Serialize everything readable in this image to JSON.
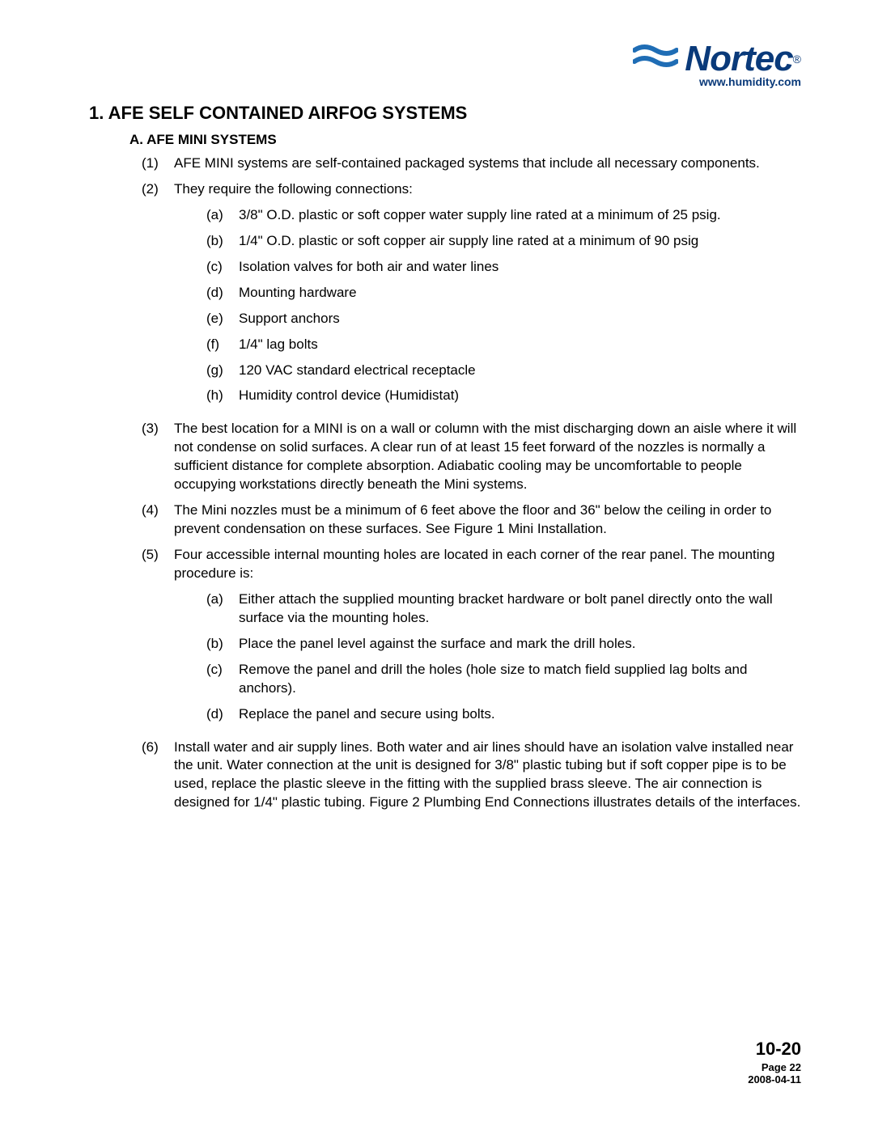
{
  "logo": {
    "name": "Nortec",
    "url": "www.humidity.com",
    "wave_color": "#1f6db5",
    "text_color": "#0a3a7a"
  },
  "title": "1.  AFE SELF CONTAINED AIRFOG SYSTEMS",
  "subtitle": "A.  AFE MINI SYSTEMS",
  "items": [
    {
      "marker": "(1)",
      "text": "AFE MINI systems are self-contained packaged systems that include all necessary components."
    },
    {
      "marker": "(2)",
      "text": "They require the following connections:",
      "subs": [
        {
          "marker": "(a)",
          "text": "3/8\" O.D. plastic or soft copper water supply line rated at a minimum of 25 psig."
        },
        {
          "marker": "(b)",
          "text": "1/4\" O.D. plastic or soft copper air supply line rated at a minimum of 90 psig"
        },
        {
          "marker": "(c)",
          "text": "Isolation valves for both air and water lines"
        },
        {
          "marker": "(d)",
          "text": "Mounting hardware"
        },
        {
          "marker": "(e)",
          "text": "Support anchors"
        },
        {
          "marker": "(f)",
          "text": "1/4\" lag bolts"
        },
        {
          "marker": "(g)",
          "text": "120 VAC standard electrical receptacle"
        },
        {
          "marker": "(h)",
          "text": "Humidity control device (Humidistat)"
        }
      ]
    },
    {
      "marker": "(3)",
      "text": "The best location for a MINI is on a wall or column with the mist discharging down an aisle where it will not condense on solid surfaces.  A clear run of at least 15 feet forward of the nozzles is normally a sufficient distance for complete absorption.  Adiabatic cooling may be uncomfortable to people occupying workstations directly beneath the Mini systems."
    },
    {
      "marker": "(4)",
      "text": "The Mini nozzles must be a minimum of 6 feet above the floor and 36\" below the ceiling in order to prevent condensation on these surfaces.  See Figure 1 Mini Installation."
    },
    {
      "marker": "(5)",
      "text": "Four accessible internal mounting holes are located in each corner of the rear panel.  The mounting procedure is:",
      "subs": [
        {
          "marker": "(a)",
          "text": "Either attach the supplied mounting bracket hardware or bolt panel directly onto the wall surface via the mounting holes."
        },
        {
          "marker": "(b)",
          "text": "Place the panel level against the surface and mark the drill holes."
        },
        {
          "marker": "(c)",
          "text": "Remove the panel and drill the holes (hole size to match field supplied lag bolts and anchors)."
        },
        {
          "marker": "(d)",
          "text": "Replace the panel and secure using bolts."
        }
      ]
    },
    {
      "marker": "(6)",
      "text": "Install water and air supply lines.  Both water and air lines should have an isolation valve installed near the unit.  Water connection at the unit is designed for 3/8\" plastic tubing but if soft copper pipe is to be used, replace the plastic sleeve in the fitting with the supplied brass sleeve.  The air connection is designed for 1/4\" plastic tubing.  Figure 2 Plumbing End Connections illustrates details of the interfaces."
    }
  ],
  "footer": {
    "doc_number": "10-20",
    "page_label": "Page  22",
    "date": "2008-04-11"
  }
}
